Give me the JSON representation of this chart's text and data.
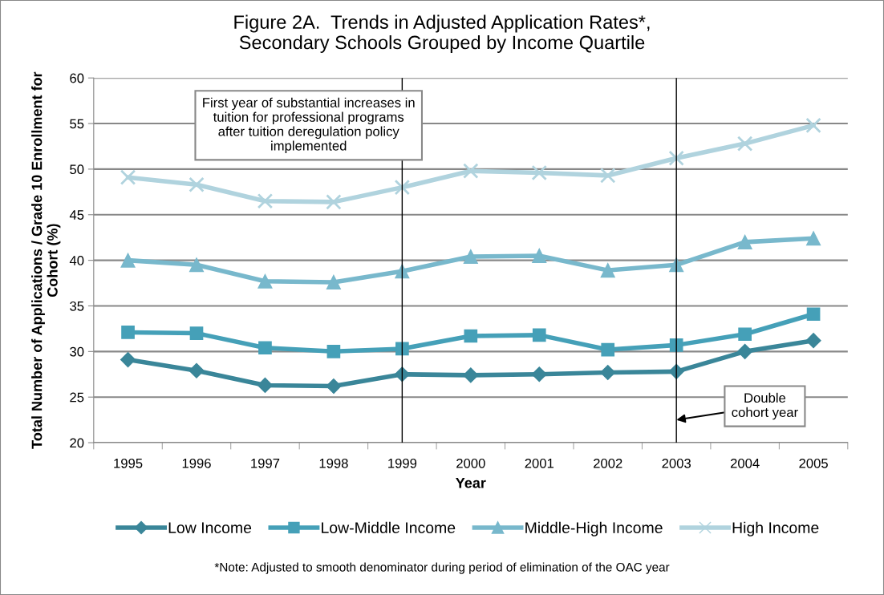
{
  "chart_data": {
    "type": "line",
    "title": "Figure 2A.  Trends in Adjusted Application Rates*,\nSecondary Schools Grouped by Income Quartile",
    "xlabel": "Year",
    "ylabel": "Total Number of Applications / Grade 10 Enrollment for\nCohort (%)",
    "categories": [
      "1995",
      "1996",
      "1997",
      "1998",
      "1999",
      "2000",
      "2001",
      "2002",
      "2003",
      "2004",
      "2005"
    ],
    "series": [
      {
        "name": "Low Income",
        "color": "#3a8699",
        "marker": "diamond",
        "values": [
          29.1,
          27.9,
          26.3,
          26.2,
          27.5,
          27.4,
          27.5,
          27.7,
          27.8,
          30.0,
          31.2
        ]
      },
      {
        "name": "Low-Middle Income",
        "color": "#45a0b8",
        "marker": "square",
        "values": [
          32.1,
          32.0,
          30.4,
          30.0,
          30.3,
          31.7,
          31.8,
          30.2,
          30.7,
          31.9,
          34.1
        ]
      },
      {
        "name": "Middle-High Income",
        "color": "#78b8cc",
        "marker": "triangle",
        "values": [
          40.0,
          39.5,
          37.7,
          37.6,
          38.8,
          40.4,
          40.5,
          38.9,
          39.5,
          42.0,
          42.4
        ]
      },
      {
        "name": "High Income",
        "color": "#b0d3de",
        "marker": "cross",
        "values": [
          49.1,
          48.3,
          46.5,
          46.4,
          48.0,
          49.8,
          49.6,
          49.3,
          51.2,
          52.8,
          54.8
        ]
      }
    ],
    "ylim": [
      20,
      60
    ],
    "yticks": [
      20,
      25,
      30,
      35,
      40,
      45,
      50,
      55,
      60
    ],
    "grid": "y",
    "legend": "bottom",
    "ref_lines": [
      {
        "axis": "x",
        "value": "1999",
        "color": "#000000"
      },
      {
        "axis": "x",
        "value": "2003",
        "color": "#000000"
      }
    ],
    "annotations": [
      {
        "text": "First year of substantial increases in\ntuition for professional programs\nafter tuition deregulation policy\nimplemented",
        "x": "1999",
        "y": 53.8
      },
      {
        "text": "Double\ncohort year",
        "x": "2003",
        "y": 22.5
      },
      "*Note: Adjusted to smooth denominator during period of elimination of the OAC year"
    ]
  }
}
